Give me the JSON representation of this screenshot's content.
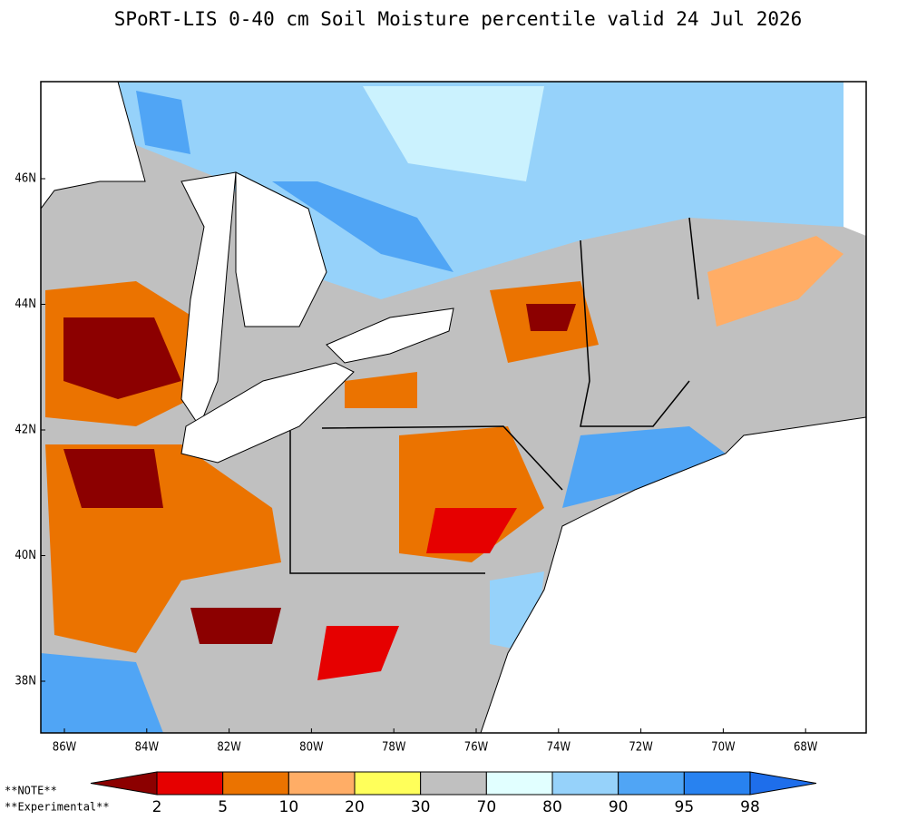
{
  "title": "SPoRT-LIS 0-40 cm Soil Moisture percentile valid 24 Jul 2026",
  "lat_labels": [
    "46N",
    "44N",
    "42N",
    "40N",
    "38N"
  ],
  "lon_labels": [
    "86W",
    "84W",
    "82W",
    "80W",
    "78W",
    "76W",
    "74W",
    "72W",
    "70W",
    "68W"
  ],
  "notes": [
    "**NOTE**",
    "**Experimental**"
  ],
  "colorbar": {
    "colors": [
      "#8c0000",
      "#e60000",
      "#eb7300",
      "#ffad66",
      "#ffff5a",
      "#c0c0c0",
      "#e1ffff",
      "#96d2fa",
      "#50a5f5",
      "#2882f0",
      "#1e6eeb"
    ],
    "boundaries": [
      2,
      5,
      10,
      20,
      30,
      70,
      80,
      90,
      95,
      98
    ]
  }
}
